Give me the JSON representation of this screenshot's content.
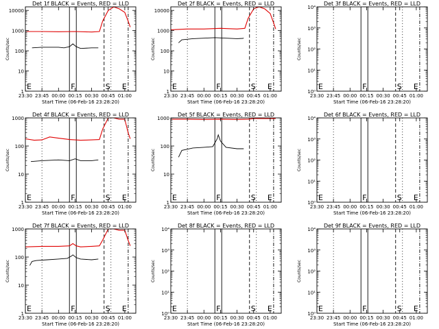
{
  "colors": {
    "events": "#000000",
    "lld": "#e00000",
    "axis": "#000000"
  },
  "chart_data": [
    {
      "type": "line",
      "title": "Det 1f BLACK = Events, RED = LLD",
      "xlabel": "Start Time (06-Feb-16 23:28:20)",
      "ylabel": "Counts/sec",
      "xlim": [
        "23:30",
        "01:10"
      ],
      "xticks": [
        "23:30",
        "23:45",
        "00:00",
        "00:15",
        "00:30",
        "00:45",
        "01:00"
      ],
      "ylim": [
        1,
        15000
      ],
      "yscale": "log",
      "yticks": [
        {
          "v": 1,
          "label": "1"
        },
        {
          "v": 10,
          "label": "10"
        },
        {
          "v": 100,
          "label": "100"
        },
        {
          "v": 1000,
          "label": "1000"
        },
        {
          "v": 10000,
          "label": "10000"
        }
      ],
      "markers": [
        {
          "label": "E",
          "x": "23:30"
        },
        {
          "label": "F",
          "x": "00:13"
        },
        {
          "label": "S",
          "x": "00:45"
        },
        {
          "label": "E",
          "x": "01:00"
        }
      ],
      "series": [
        {
          "name": "Events",
          "x": [
            "23:36",
            "23:45",
            "00:00",
            "00:05",
            "00:10",
            "00:13",
            "00:16",
            "00:20",
            "00:30",
            "00:35",
            "00:36"
          ],
          "values": [
            140,
            150,
            150,
            140,
            160,
            220,
            160,
            130,
            140,
            140,
            140
          ]
        },
        {
          "name": "LLD",
          "x": [
            "23:30",
            "23:45",
            "00:00",
            "00:15",
            "00:30",
            "00:37",
            "00:40",
            "00:45",
            "00:50",
            "00:55",
            "01:00",
            "01:03",
            "01:05"
          ],
          "values": [
            900,
            900,
            880,
            900,
            850,
            900,
            3000,
            10000,
            15000,
            12000,
            8000,
            3000,
            1500
          ]
        }
      ]
    },
    {
      "type": "line",
      "title": "Det 2f BLACK = Events, RED = LLD",
      "xlabel": "Start Time (06-Feb-16 23:28:20)",
      "ylabel": "Counts/sec",
      "xlim": [
        "23:30",
        "01:10"
      ],
      "xticks": [
        "23:30",
        "23:45",
        "00:00",
        "00:15",
        "00:30",
        "00:45",
        "01:00"
      ],
      "ylim": [
        1,
        15000
      ],
      "yscale": "log",
      "yticks": [
        {
          "v": 1,
          "label": "1"
        },
        {
          "v": 10,
          "label": "10"
        },
        {
          "v": 100,
          "label": "100"
        },
        {
          "v": 1000,
          "label": "1000"
        },
        {
          "v": 10000,
          "label": "10000"
        }
      ],
      "markers": [
        {
          "label": "E",
          "x": "23:30"
        },
        {
          "label": "F",
          "x": "00:13"
        },
        {
          "label": "S",
          "x": "00:45"
        },
        {
          "label": "E",
          "x": "01:00"
        }
      ],
      "series": [
        {
          "name": "Events",
          "x": [
            "23:37",
            "23:40",
            "23:50",
            "00:00",
            "00:10",
            "00:20",
            "00:30",
            "00:35",
            "00:36"
          ],
          "values": [
            250,
            350,
            400,
            420,
            450,
            420,
            400,
            410,
            420
          ]
        },
        {
          "name": "LLD",
          "x": [
            "23:30",
            "23:45",
            "00:00",
            "00:15",
            "00:30",
            "00:37",
            "00:40",
            "00:45",
            "00:50",
            "00:55",
            "01:00",
            "01:03",
            "01:05"
          ],
          "values": [
            1100,
            1200,
            1200,
            1300,
            1200,
            1300,
            4000,
            12000,
            15000,
            12000,
            7000,
            2500,
            1200
          ]
        }
      ]
    },
    {
      "type": "line",
      "title": "Det 3f BLACK = Events, RED = LLD",
      "xlabel": "Start Time (06-Feb-16 23:28:20)",
      "ylabel": "Counts/sec",
      "xlim": [
        "23:30",
        "01:10"
      ],
      "xticks": [
        "23:30",
        "23:45",
        "00:00",
        "00:15",
        "00:30",
        "00:45",
        "01:00"
      ],
      "ylim": [
        1,
        10000
      ],
      "yscale": "log",
      "yticks": [
        {
          "v": 1,
          "label": "10⁰"
        },
        {
          "v": 10,
          "label": "10¹"
        },
        {
          "v": 100,
          "label": "10²"
        },
        {
          "v": 1000,
          "label": "10³"
        },
        {
          "v": 10000,
          "label": "10⁴"
        }
      ],
      "markers": [
        {
          "label": "E",
          "x": "23:30"
        },
        {
          "label": "F",
          "x": "00:13"
        },
        {
          "label": "S",
          "x": "00:45"
        },
        {
          "label": "E",
          "x": "01:00"
        }
      ],
      "series": []
    },
    {
      "type": "line",
      "title": "Det 4f BLACK = Events, RED = LLD",
      "xlabel": "Start Time (06-Feb-16 23:28:20)",
      "ylabel": "Counts/sec",
      "xlim": [
        "23:30",
        "01:10"
      ],
      "xticks": [
        "23:30",
        "23:45",
        "00:00",
        "00:15",
        "00:30",
        "00:45",
        "01:00"
      ],
      "ylim": [
        1,
        1000
      ],
      "yscale": "log",
      "yticks": [
        {
          "v": 1,
          "label": "1"
        },
        {
          "v": 10,
          "label": "10"
        },
        {
          "v": 100,
          "label": "100"
        },
        {
          "v": 1000,
          "label": "1000"
        }
      ],
      "markers": [
        {
          "label": "E",
          "x": "23:30"
        },
        {
          "label": "F",
          "x": "00:13"
        },
        {
          "label": "S",
          "x": "00:45"
        },
        {
          "label": "E",
          "x": "01:00"
        }
      ],
      "series": [
        {
          "name": "Events",
          "x": [
            "23:35",
            "23:45",
            "00:00",
            "00:10",
            "00:15",
            "00:20",
            "00:30",
            "00:36"
          ],
          "values": [
            28,
            30,
            32,
            30,
            35,
            30,
            30,
            32
          ]
        },
        {
          "name": "LLD",
          "x": [
            "23:30",
            "23:38",
            "23:45",
            "23:52",
            "00:00",
            "00:10",
            "00:20",
            "00:30",
            "00:37",
            "00:40",
            "00:45",
            "00:50",
            "00:55",
            "01:00",
            "01:03",
            "01:05"
          ],
          "values": [
            180,
            160,
            165,
            210,
            190,
            170,
            160,
            165,
            170,
            400,
            1000,
            1000,
            900,
            900,
            300,
            180
          ]
        }
      ]
    },
    {
      "type": "line",
      "title": "Det 5f BLACK = Events, RED = LLD",
      "xlabel": "Start Time (06-Feb-16 23:28:20)",
      "ylabel": "Counts/sec",
      "xlim": [
        "23:30",
        "01:10"
      ],
      "xticks": [
        "23:30",
        "23:45",
        "00:00",
        "00:15",
        "00:30",
        "00:45",
        "01:00"
      ],
      "ylim": [
        1,
        1000
      ],
      "yscale": "log",
      "yticks": [
        {
          "v": 1,
          "label": "1"
        },
        {
          "v": 10,
          "label": "10"
        },
        {
          "v": 100,
          "label": "100"
        },
        {
          "v": 1000,
          "label": "1000"
        }
      ],
      "markers": [
        {
          "label": "E",
          "x": "23:30"
        },
        {
          "label": "F",
          "x": "00:13"
        },
        {
          "label": "S",
          "x": "00:45"
        },
        {
          "label": "E",
          "x": "01:00"
        }
      ],
      "series": [
        {
          "name": "Events",
          "x": [
            "23:37",
            "23:40",
            "23:50",
            "00:00",
            "00:08",
            "00:12",
            "00:13",
            "00:15",
            "00:20",
            "00:30",
            "00:36"
          ],
          "values": [
            40,
            70,
            85,
            90,
            95,
            180,
            250,
            150,
            90,
            80,
            80
          ]
        },
        {
          "name": "LLD",
          "x": [
            "23:30",
            "23:45",
            "00:00",
            "00:15",
            "00:30",
            "00:40",
            "00:45",
            "00:50",
            "01:00",
            "01:05"
          ],
          "values": [
            900,
            900,
            880,
            900,
            880,
            900,
            950,
            950,
            950,
            950
          ]
        }
      ]
    },
    {
      "type": "line",
      "title": "Det 6f BLACK = Events, RED = LLD",
      "xlabel": "Start Time (06-Feb-16 23:28:20)",
      "ylabel": "Counts/sec",
      "xlim": [
        "23:30",
        "01:10"
      ],
      "xticks": [
        "23:30",
        "23:45",
        "00:00",
        "00:15",
        "00:30",
        "00:45",
        "01:00"
      ],
      "ylim": [
        1,
        10000
      ],
      "yscale": "log",
      "yticks": [
        {
          "v": 1,
          "label": "10⁰"
        },
        {
          "v": 10,
          "label": "10¹"
        },
        {
          "v": 100,
          "label": "10²"
        },
        {
          "v": 1000,
          "label": "10³"
        },
        {
          "v": 10000,
          "label": "10⁴"
        }
      ],
      "markers": [
        {
          "label": "E",
          "x": "23:30"
        },
        {
          "label": "F",
          "x": "00:13"
        },
        {
          "label": "S",
          "x": "00:45"
        },
        {
          "label": "E",
          "x": "01:00"
        }
      ],
      "series": []
    },
    {
      "type": "line",
      "title": "Det 7f BLACK = Events, RED = LLD",
      "xlabel": "Start Time (06-Feb-16 23:28:20)",
      "ylabel": "Counts/sec",
      "xlim": [
        "23:30",
        "01:10"
      ],
      "xticks": [
        "23:30",
        "23:45",
        "00:00",
        "00:15",
        "00:30",
        "00:45",
        "01:00"
      ],
      "ylim": [
        1,
        1000
      ],
      "yscale": "log",
      "yticks": [
        {
          "v": 1,
          "label": "1"
        },
        {
          "v": 10,
          "label": "10"
        },
        {
          "v": 100,
          "label": "100"
        },
        {
          "v": 1000,
          "label": "1000"
        }
      ],
      "markers": [
        {
          "label": "E",
          "x": "23:30"
        },
        {
          "label": "F",
          "x": "00:13"
        },
        {
          "label": "S",
          "x": "00:45"
        },
        {
          "label": "E",
          "x": "01:00"
        }
      ],
      "series": [
        {
          "name": "Events",
          "x": [
            "23:34",
            "23:36",
            "23:40",
            "23:50",
            "00:00",
            "00:08",
            "00:12",
            "00:13",
            "00:16",
            "00:20",
            "00:30",
            "00:36"
          ],
          "values": [
            50,
            70,
            75,
            80,
            85,
            90,
            110,
            120,
            95,
            85,
            80,
            85
          ]
        },
        {
          "name": "LLD",
          "x": [
            "23:30",
            "23:45",
            "00:00",
            "00:10",
            "00:13",
            "00:16",
            "00:20",
            "00:30",
            "00:37",
            "00:40",
            "00:45",
            "00:50",
            "00:55",
            "01:00",
            "01:03",
            "01:05"
          ],
          "values": [
            230,
            240,
            240,
            250,
            300,
            250,
            230,
            240,
            250,
            400,
            1000,
            1000,
            900,
            900,
            400,
            250
          ]
        }
      ]
    },
    {
      "type": "line",
      "title": "Det 8f BLACK = Events, RED = LLD",
      "xlabel": "Start Time (06-Feb-16 23:28:20)",
      "ylabel": "Counts/sec",
      "xlim": [
        "23:30",
        "01:10"
      ],
      "xticks": [
        "23:30",
        "23:45",
        "00:00",
        "00:15",
        "00:30",
        "00:45",
        "01:00"
      ],
      "ylim": [
        1,
        10000
      ],
      "yscale": "log",
      "yticks": [
        {
          "v": 1,
          "label": "10⁰"
        },
        {
          "v": 10,
          "label": "10¹"
        },
        {
          "v": 100,
          "label": "10²"
        },
        {
          "v": 1000,
          "label": "10³"
        },
        {
          "v": 10000,
          "label": "10⁴"
        }
      ],
      "markers": [
        {
          "label": "E",
          "x": "23:30"
        },
        {
          "label": "F",
          "x": "00:13"
        },
        {
          "label": "S",
          "x": "00:45"
        },
        {
          "label": "E",
          "x": "01:00"
        }
      ],
      "series": []
    },
    {
      "type": "line",
      "title": "Det 9f BLACK = Events, RED = LLD",
      "xlabel": "Start Time (06-Feb-16 23:28:20)",
      "ylabel": "Counts/sec",
      "xlim": [
        "23:30",
        "01:10"
      ],
      "xticks": [
        "23:30",
        "23:45",
        "00:00",
        "00:15",
        "00:30",
        "00:45",
        "01:00"
      ],
      "ylim": [
        1,
        10000
      ],
      "yscale": "log",
      "yticks": [
        {
          "v": 1,
          "label": "10⁰"
        },
        {
          "v": 10,
          "label": "10¹"
        },
        {
          "v": 100,
          "label": "10²"
        },
        {
          "v": 1000,
          "label": "10³"
        },
        {
          "v": 10000,
          "label": "10⁴"
        }
      ],
      "markers": [
        {
          "label": "E",
          "x": "23:30"
        },
        {
          "label": "F",
          "x": "00:13"
        },
        {
          "label": "S",
          "x": "00:45"
        },
        {
          "label": "E",
          "x": "01:00"
        }
      ],
      "series": []
    }
  ]
}
